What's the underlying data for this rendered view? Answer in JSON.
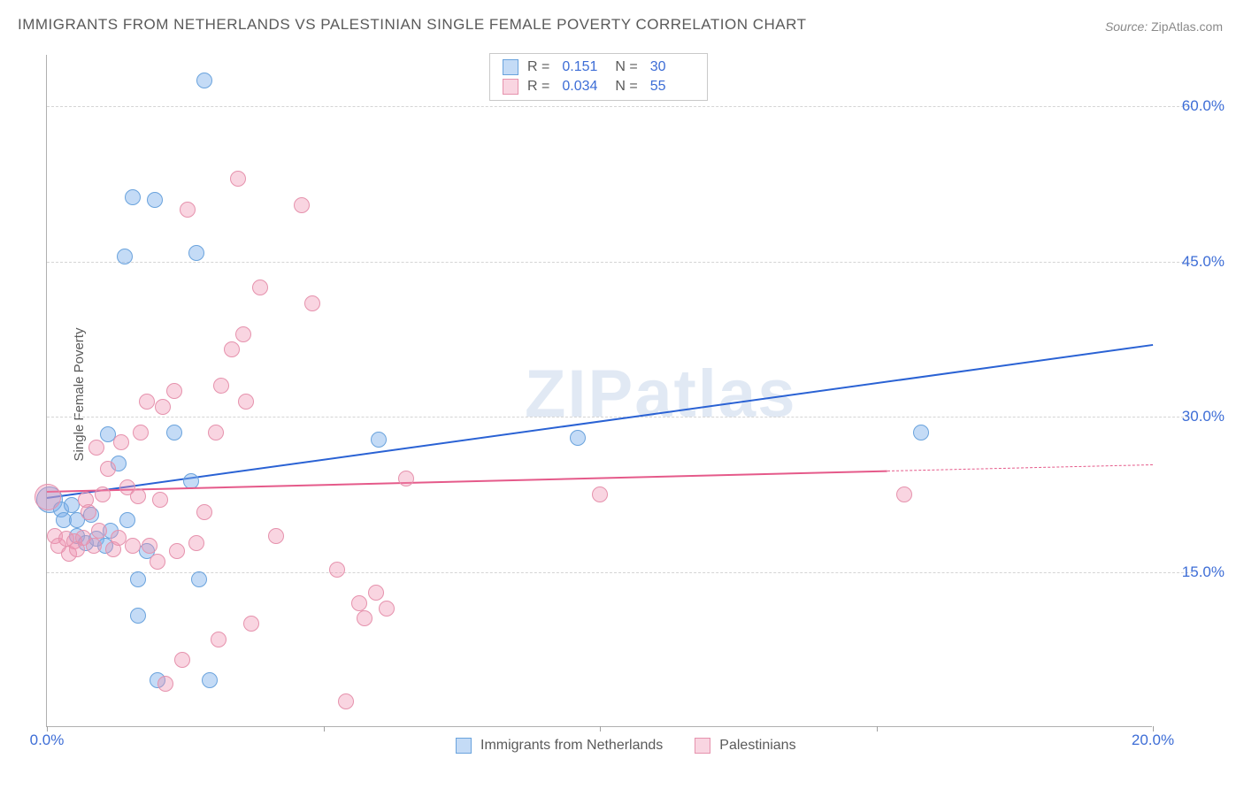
{
  "title": "IMMIGRANTS FROM NETHERLANDS VS PALESTINIAN SINGLE FEMALE POVERTY CORRELATION CHART",
  "source_label": "Source:",
  "source_value": "ZipAtlas.com",
  "yaxis_label": "Single Female Poverty",
  "watermark": "ZIPatlas",
  "chart": {
    "type": "scatter",
    "xlim": [
      0,
      20
    ],
    "ylim": [
      0,
      65
    ],
    "xtick_positions": [
      0,
      5,
      10,
      15,
      20
    ],
    "xtick_labels": [
      "0.0%",
      "",
      "",
      "",
      "20.0%"
    ],
    "ytick_positions": [
      15,
      30,
      45,
      60
    ],
    "ytick_labels": [
      "15.0%",
      "30.0%",
      "45.0%",
      "60.0%"
    ],
    "grid_color": "#d5d5d5",
    "axis_color": "#b0b0b0",
    "background_color": "#ffffff",
    "tick_label_color": "#3d6dd6",
    "tick_label_fontsize": 17,
    "point_radius": 9,
    "large_point_radius": 15,
    "series": [
      {
        "name": "Immigrants from Netherlands",
        "fill_color": "rgba(125,175,235,0.45)",
        "stroke_color": "#6aa3dd",
        "trend_color": "#2a62d4",
        "trend_width": 2.2,
        "R": "0.151",
        "N": "30",
        "trend": {
          "x1": 0,
          "y1": 22.2,
          "x2": 20,
          "y2": 37.0
        },
        "points": [
          {
            "x": 0.05,
            "y": 22,
            "r": 15
          },
          {
            "x": 0.25,
            "y": 21
          },
          {
            "x": 0.3,
            "y": 20
          },
          {
            "x": 0.45,
            "y": 21.5
          },
          {
            "x": 0.55,
            "y": 18.5
          },
          {
            "x": 0.55,
            "y": 20
          },
          {
            "x": 0.7,
            "y": 17.8
          },
          {
            "x": 0.8,
            "y": 20.5
          },
          {
            "x": 0.9,
            "y": 18.2
          },
          {
            "x": 1.05,
            "y": 17.5
          },
          {
            "x": 1.1,
            "y": 28.3
          },
          {
            "x": 1.15,
            "y": 19
          },
          {
            "x": 1.3,
            "y": 25.5
          },
          {
            "x": 1.4,
            "y": 45.5
          },
          {
            "x": 1.45,
            "y": 20
          },
          {
            "x": 1.55,
            "y": 51.2
          },
          {
            "x": 1.65,
            "y": 14.3
          },
          {
            "x": 1.65,
            "y": 10.8
          },
          {
            "x": 1.8,
            "y": 17
          },
          {
            "x": 1.95,
            "y": 51
          },
          {
            "x": 2.0,
            "y": 4.5
          },
          {
            "x": 2.3,
            "y": 28.5
          },
          {
            "x": 2.6,
            "y": 23.8
          },
          {
            "x": 2.7,
            "y": 45.8
          },
          {
            "x": 2.75,
            "y": 14.3
          },
          {
            "x": 2.85,
            "y": 62.5
          },
          {
            "x": 2.95,
            "y": 4.5
          },
          {
            "x": 6.0,
            "y": 27.8
          },
          {
            "x": 9.6,
            "y": 28
          },
          {
            "x": 15.8,
            "y": 28.5
          }
        ]
      },
      {
        "name": "Palestinians",
        "fill_color": "rgba(240,145,175,0.38)",
        "stroke_color": "#e692ad",
        "trend_color": "#e55a8a",
        "trend_width": 2.0,
        "R": "0.034",
        "N": "55",
        "trend": {
          "x1": 0,
          "y1": 22.8,
          "x2": 15.2,
          "y2": 24.8
        },
        "trend_dash_extend": {
          "x1": 15.2,
          "y1": 24.8,
          "x2": 20,
          "y2": 25.4
        },
        "points": [
          {
            "x": 0.02,
            "y": 22.2,
            "r": 15
          },
          {
            "x": 0.15,
            "y": 18.5
          },
          {
            "x": 0.2,
            "y": 17.5
          },
          {
            "x": 0.35,
            "y": 18.2
          },
          {
            "x": 0.4,
            "y": 16.8
          },
          {
            "x": 0.5,
            "y": 18
          },
          {
            "x": 0.55,
            "y": 17.2
          },
          {
            "x": 0.65,
            "y": 18.3
          },
          {
            "x": 0.7,
            "y": 22
          },
          {
            "x": 0.75,
            "y": 20.8
          },
          {
            "x": 0.85,
            "y": 17.5
          },
          {
            "x": 0.9,
            "y": 27
          },
          {
            "x": 0.95,
            "y": 19
          },
          {
            "x": 1.0,
            "y": 22.5
          },
          {
            "x": 1.1,
            "y": 25
          },
          {
            "x": 1.2,
            "y": 17.2
          },
          {
            "x": 1.3,
            "y": 18.3
          },
          {
            "x": 1.35,
            "y": 27.5
          },
          {
            "x": 1.45,
            "y": 23.2
          },
          {
            "x": 1.55,
            "y": 17.5
          },
          {
            "x": 1.65,
            "y": 22.3
          },
          {
            "x": 1.7,
            "y": 28.5
          },
          {
            "x": 1.8,
            "y": 31.5
          },
          {
            "x": 1.85,
            "y": 17.5
          },
          {
            "x": 2.0,
            "y": 16
          },
          {
            "x": 2.05,
            "y": 22
          },
          {
            "x": 2.1,
            "y": 31
          },
          {
            "x": 2.15,
            "y": 4.2
          },
          {
            "x": 2.3,
            "y": 32.5
          },
          {
            "x": 2.35,
            "y": 17
          },
          {
            "x": 2.45,
            "y": 6.5
          },
          {
            "x": 2.55,
            "y": 50
          },
          {
            "x": 2.7,
            "y": 17.8
          },
          {
            "x": 2.85,
            "y": 20.8
          },
          {
            "x": 3.05,
            "y": 28.5
          },
          {
            "x": 3.1,
            "y": 8.5
          },
          {
            "x": 3.15,
            "y": 33
          },
          {
            "x": 3.35,
            "y": 36.5
          },
          {
            "x": 3.45,
            "y": 53
          },
          {
            "x": 3.55,
            "y": 38
          },
          {
            "x": 3.6,
            "y": 31.5
          },
          {
            "x": 3.7,
            "y": 10
          },
          {
            "x": 3.85,
            "y": 42.5
          },
          {
            "x": 4.15,
            "y": 18.5
          },
          {
            "x": 4.6,
            "y": 50.5
          },
          {
            "x": 4.8,
            "y": 41
          },
          {
            "x": 5.25,
            "y": 15.2
          },
          {
            "x": 5.4,
            "y": 2.5
          },
          {
            "x": 5.65,
            "y": 12
          },
          {
            "x": 5.75,
            "y": 10.5
          },
          {
            "x": 5.95,
            "y": 13
          },
          {
            "x": 6.15,
            "y": 11.5
          },
          {
            "x": 6.5,
            "y": 24
          },
          {
            "x": 10.0,
            "y": 22.5
          },
          {
            "x": 15.5,
            "y": 22.5
          }
        ]
      }
    ]
  },
  "legend_top": {
    "r_label": "R =",
    "n_label": "N ="
  },
  "legend_bottom": {
    "items": [
      "Immigrants from Netherlands",
      "Palestinians"
    ]
  }
}
